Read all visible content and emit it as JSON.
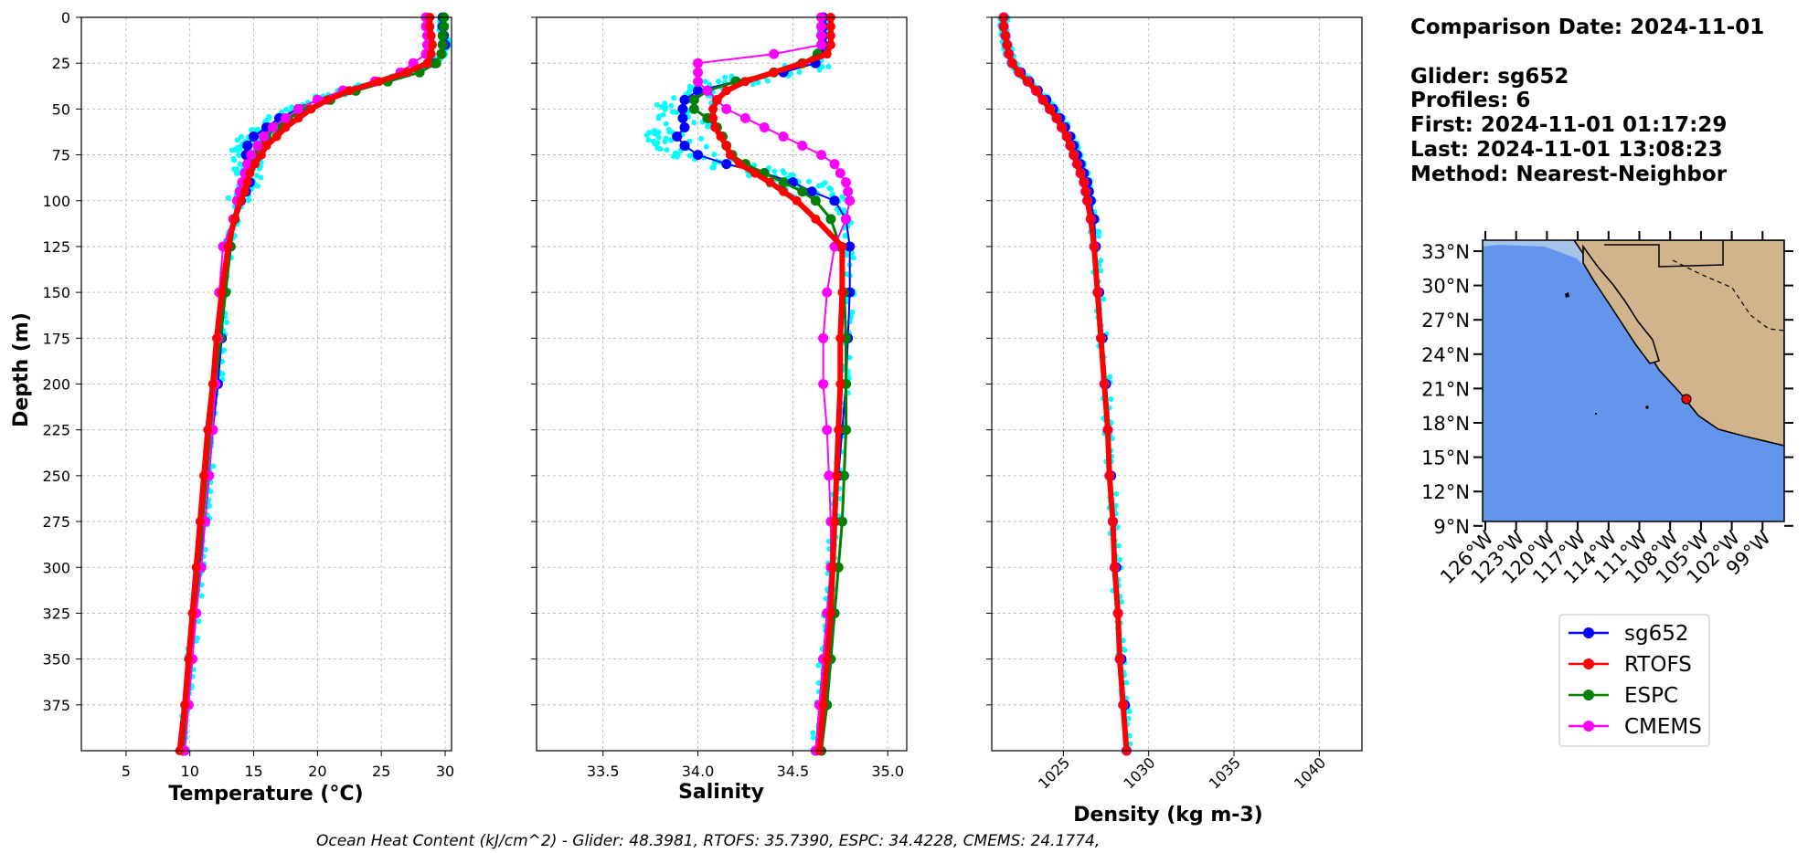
{
  "info": {
    "comparison_date": "Comparison Date: 2024-11-01",
    "glider": "Glider: sg652",
    "profiles": "Profiles: 6",
    "first": "First: 2024-11-01 01:17:29",
    "last": "Last: 2024-11-01 13:08:23",
    "method": "Method: Nearest-Neighbor"
  },
  "footer": "Ocean Heat Content (kJ/cm^2) - Glider: 48.3981,  RTOFS: 35.7390,  ESPC: 34.4228,  CMEMS: 24.1774,",
  "colors": {
    "sg652": "#0000ff",
    "RTOFS": "#ff0000",
    "ESPC": "#008000",
    "CMEMS": "#ff00ff",
    "raw": "#00ffff",
    "ocean": "#6495ed",
    "shelf": "#a6c4ea",
    "land": "#d2b48c"
  },
  "legend": [
    "sg652",
    "RTOFS",
    "ESPC",
    "CMEMS"
  ],
  "map": {
    "lat_ticks": [
      "33°N",
      "30°N",
      "27°N",
      "24°N",
      "21°N",
      "18°N",
      "15°N",
      "12°N",
      "9°N"
    ],
    "lon_ticks": [
      "126°W",
      "123°W",
      "120°W",
      "117°W",
      "114°W",
      "111°W",
      "108°W",
      "105°W",
      "102°W",
      "99°W"
    ]
  },
  "chart_data": [
    {
      "type": "line",
      "xlabel": "Temperature (°C)",
      "ylabel": "Depth (m)",
      "xlim": [
        1.5,
        30.5
      ],
      "ylim": [
        400,
        0
      ],
      "xticks": [
        "5",
        "10",
        "15",
        "20",
        "25",
        "30"
      ],
      "yticks": [
        "0",
        "25",
        "50",
        "75",
        "100",
        "125",
        "150",
        "175",
        "200",
        "225",
        "250",
        "275",
        "300",
        "325",
        "350",
        "375"
      ],
      "depth": [
        0,
        5,
        10,
        15,
        20,
        25,
        30,
        35,
        40,
        45,
        50,
        55,
        60,
        65,
        70,
        75,
        80,
        85,
        90,
        95,
        100,
        110,
        125,
        150,
        175,
        200,
        225,
        250,
        275,
        300,
        325,
        350,
        375,
        400
      ],
      "series": [
        {
          "name": "sg652",
          "values": [
            29.8,
            29.8,
            29.9,
            30.0,
            29.7,
            29.2,
            27.0,
            24.5,
            22.0,
            20.0,
            18.5,
            17.0,
            16.0,
            15.0,
            14.5,
            14.4,
            14.6,
            14.6,
            14.7,
            14.4,
            14.0,
            13.5,
            13.0,
            12.7,
            12.5,
            12.2,
            11.8,
            11.5,
            11.2,
            10.8,
            10.5,
            10.1,
            9.7,
            9.5
          ]
        },
        {
          "name": "RTOFS",
          "values": [
            28.8,
            28.8,
            28.9,
            29.0,
            28.9,
            28.6,
            27.0,
            24.8,
            22.5,
            20.8,
            19.5,
            18.5,
            17.5,
            16.8,
            16.0,
            15.6,
            15.1,
            14.7,
            14.5,
            14.3,
            14.0,
            13.5,
            13.0,
            12.5,
            12.1,
            11.8,
            11.4,
            11.1,
            10.8,
            10.5,
            10.2,
            9.9,
            9.6,
            9.2
          ]
        },
        {
          "name": "ESPC",
          "values": [
            29.9,
            29.9,
            29.8,
            29.8,
            29.7,
            29.3,
            28.0,
            25.5,
            23.0,
            21.0,
            19.0,
            17.7,
            16.8,
            16.0,
            15.5,
            15.2,
            14.8,
            14.5,
            14.2,
            14.0,
            13.8,
            13.5,
            13.2,
            12.8,
            12.4,
            12.0,
            11.6,
            11.3,
            11.0,
            10.7,
            10.4,
            10.1,
            9.8,
            9.5
          ]
        },
        {
          "name": "CMEMS",
          "values": [
            28.5,
            28.5,
            28.6,
            28.6,
            28.5,
            27.5,
            26.5,
            24.5,
            22.0,
            20.0,
            18.5,
            17.5,
            16.5,
            15.8,
            15.3,
            14.8,
            14.5,
            14.3,
            14.1,
            13.9,
            13.7,
            13.4,
            12.6,
            12.3,
            12.2,
            12.0,
            11.8,
            11.5,
            11.2,
            10.9,
            10.5,
            10.2,
            9.9,
            9.6
          ]
        }
      ]
    },
    {
      "type": "line",
      "xlabel": "Salinity",
      "xlim": [
        33.15,
        35.1
      ],
      "ylim": [
        400,
        0
      ],
      "xticks": [
        "33.5",
        "34.0",
        "34.5",
        "35.0"
      ],
      "depth": [
        0,
        5,
        10,
        15,
        20,
        25,
        30,
        35,
        40,
        45,
        50,
        55,
        60,
        65,
        70,
        75,
        80,
        85,
        90,
        95,
        100,
        110,
        125,
        150,
        175,
        200,
        225,
        250,
        275,
        300,
        325,
        350,
        375,
        400
      ],
      "series": [
        {
          "name": "sg652",
          "values": [
            34.66,
            34.66,
            34.66,
            34.66,
            34.65,
            34.62,
            34.45,
            34.2,
            34.0,
            33.93,
            33.92,
            33.92,
            33.93,
            33.89,
            33.93,
            34.0,
            34.15,
            34.35,
            34.5,
            34.6,
            34.72,
            34.78,
            34.8,
            34.8,
            34.79,
            34.78,
            34.76,
            34.74,
            34.72,
            34.7,
            34.68,
            34.66,
            34.64,
            34.62
          ]
        },
        {
          "name": "RTOFS",
          "values": [
            34.7,
            34.7,
            34.7,
            34.7,
            34.68,
            34.55,
            34.4,
            34.25,
            34.15,
            34.1,
            34.08,
            34.08,
            34.09,
            34.12,
            34.15,
            34.17,
            34.22,
            34.3,
            34.38,
            34.45,
            34.52,
            34.62,
            34.76,
            34.76,
            34.75,
            34.75,
            34.74,
            34.73,
            34.72,
            34.71,
            34.7,
            34.68,
            34.66,
            34.64
          ]
        },
        {
          "name": "ESPC",
          "values": [
            34.65,
            34.65,
            34.65,
            34.65,
            34.63,
            34.55,
            34.4,
            34.2,
            34.05,
            33.98,
            33.98,
            34.05,
            34.1,
            34.13,
            34.15,
            34.18,
            34.25,
            34.35,
            34.45,
            34.55,
            34.62,
            34.7,
            34.75,
            34.77,
            34.78,
            34.78,
            34.78,
            34.77,
            34.76,
            34.74,
            34.72,
            34.7,
            34.68,
            34.65
          ]
        },
        {
          "name": "CMEMS",
          "values": [
            34.65,
            34.65,
            34.65,
            34.65,
            34.4,
            34.0,
            34.0,
            34.0,
            34.05,
            34.1,
            34.15,
            34.25,
            34.35,
            34.45,
            34.55,
            34.65,
            34.72,
            34.75,
            34.78,
            34.79,
            34.8,
            34.78,
            34.72,
            34.68,
            34.66,
            34.66,
            34.68,
            34.69,
            34.7,
            34.7,
            34.68,
            34.66,
            34.64,
            34.62
          ]
        }
      ]
    },
    {
      "type": "line",
      "xlabel": "Density (kg m-3)",
      "xlim": [
        1020.8,
        1042.5
      ],
      "ylim": [
        400,
        0
      ],
      "xticks": [
        "1025",
        "1030",
        "1035",
        "1040"
      ],
      "depth": [
        0,
        5,
        10,
        15,
        20,
        25,
        30,
        35,
        40,
        45,
        50,
        55,
        60,
        65,
        70,
        75,
        80,
        85,
        90,
        95,
        100,
        110,
        125,
        150,
        175,
        200,
        225,
        250,
        275,
        300,
        325,
        350,
        375,
        400
      ],
      "series": [
        {
          "name": "sg652",
          "values": [
            1021.5,
            1021.5,
            1021.6,
            1021.7,
            1021.8,
            1022.0,
            1022.5,
            1023.0,
            1023.5,
            1024.0,
            1024.4,
            1024.8,
            1025.1,
            1025.4,
            1025.6,
            1025.8,
            1026.0,
            1026.2,
            1026.4,
            1026.5,
            1026.6,
            1026.8,
            1026.9,
            1027.1,
            1027.3,
            1027.5,
            1027.6,
            1027.8,
            1027.9,
            1028.1,
            1028.2,
            1028.4,
            1028.6,
            1028.7
          ]
        },
        {
          "name": "RTOFS",
          "values": [
            1021.5,
            1021.5,
            1021.6,
            1021.7,
            1021.8,
            1022.0,
            1022.4,
            1022.9,
            1023.4,
            1023.8,
            1024.2,
            1024.6,
            1024.9,
            1025.2,
            1025.4,
            1025.6,
            1025.8,
            1026.0,
            1026.2,
            1026.3,
            1026.4,
            1026.6,
            1026.8,
            1027.0,
            1027.2,
            1027.4,
            1027.6,
            1027.7,
            1027.9,
            1028.0,
            1028.2,
            1028.3,
            1028.5,
            1028.7
          ]
        },
        {
          "name": "ESPC",
          "values": [
            1021.5,
            1021.5,
            1021.6,
            1021.7,
            1021.8,
            1022.0,
            1022.4,
            1022.9,
            1023.4,
            1023.8,
            1024.2,
            1024.6,
            1024.9,
            1025.2,
            1025.4,
            1025.6,
            1025.8,
            1026.0,
            1026.2,
            1026.3,
            1026.4,
            1026.6,
            1026.8,
            1027.0,
            1027.2,
            1027.4,
            1027.6,
            1027.7,
            1027.9,
            1028.0,
            1028.2,
            1028.3,
            1028.5,
            1028.7
          ]
        },
        {
          "name": "CMEMS",
          "values": [
            1021.5,
            1021.5,
            1021.6,
            1021.7,
            1021.8,
            1022.0,
            1022.4,
            1022.9,
            1023.4,
            1023.8,
            1024.2,
            1024.6,
            1024.9,
            1025.2,
            1025.4,
            1025.6,
            1025.8,
            1026.0,
            1026.2,
            1026.3,
            1026.4,
            1026.6,
            1026.8,
            1027.0,
            1027.2,
            1027.4,
            1027.6,
            1027.7,
            1027.9,
            1028.0,
            1028.2,
            1028.3,
            1028.5,
            1028.7
          ]
        }
      ]
    }
  ]
}
